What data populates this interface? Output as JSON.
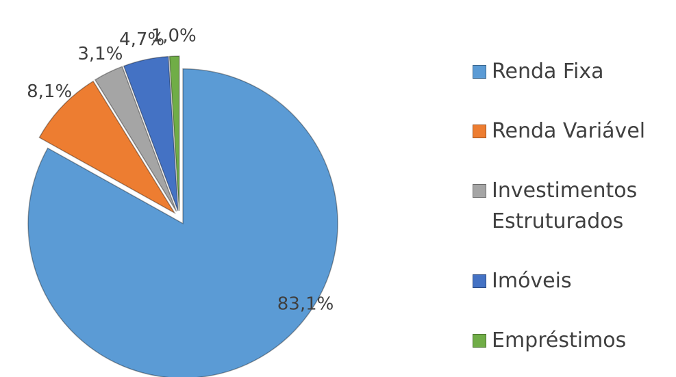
{
  "chart_data": {
    "type": "pie",
    "categories": [
      "Renda Fixa",
      "Renda Variável",
      "Investimentos Estruturados",
      "Imóveis",
      "Empréstimos"
    ],
    "values": [
      83.1,
      8.1,
      3.1,
      4.7,
      1.0
    ],
    "value_labels": [
      "83,1%",
      "8,1%",
      "3,1%",
      "4,7%",
      "1,0%"
    ],
    "colors": [
      "#5b9bd5",
      "#ed7d31",
      "#a5a5a5",
      "#4472c4",
      "#70ad47"
    ],
    "legend": "right"
  }
}
